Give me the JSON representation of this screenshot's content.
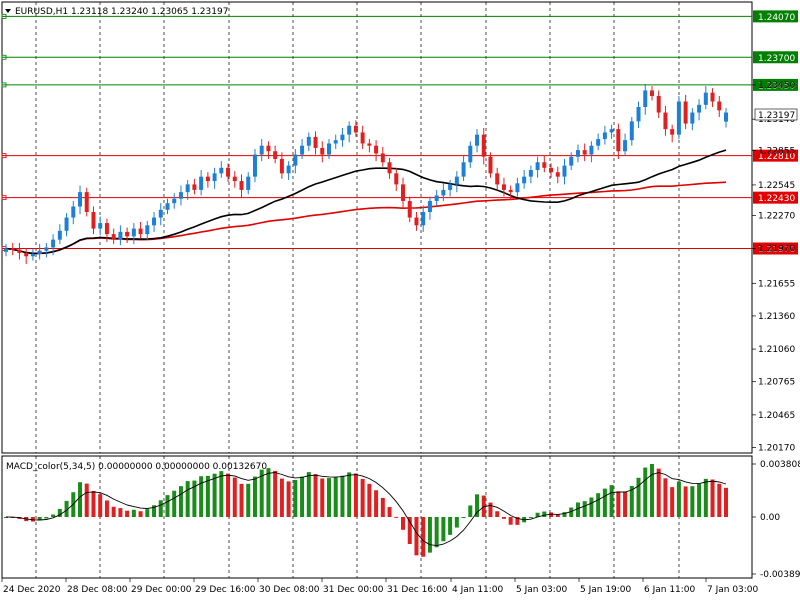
{
  "header": {
    "symbol_line": "EURUSD,H1  1.23118 1.23240 1.23065 1.23197",
    "macd_line": "MACD_color(5,34,5) 0.00000000 0.00000000 0.00132670"
  },
  "current_price": "1.23197",
  "price_axis": {
    "ticks": [
      "1.23450",
      "1.23140",
      "1.22855",
      "1.22545",
      "1.22270",
      "1.21970",
      "1.21655",
      "1.21360",
      "1.21060",
      "1.20765",
      "1.20465",
      "1.20170"
    ]
  },
  "macd_axis": {
    "ticks": [
      "0.0038082",
      "0.00",
      "-0.003894"
    ]
  },
  "levels": [
    {
      "label": "1.24070",
      "price": 1.2407,
      "color": "#008000"
    },
    {
      "label": "1.23700",
      "price": 1.237,
      "color": "#008000"
    },
    {
      "label": "1.23450",
      "price": 1.2345,
      "color": "#008000"
    },
    {
      "label": "1.22810",
      "price": 1.2281,
      "color": "#e00000"
    },
    {
      "label": "1.22430",
      "price": 1.2243,
      "color": "#e00000"
    },
    {
      "label": "1.21970",
      "price": 1.2197,
      "color": "#e00000"
    }
  ],
  "time_labels": [
    "24 Dec 2020",
    "28 Dec 08:00",
    "29 Dec 00:00",
    "29 Dec 16:00",
    "30 Dec 08:00",
    "31 Dec 00:00",
    "31 Dec 16:00",
    "4 Jan 11:00",
    "5 Jan 03:00",
    "5 Jan 19:00",
    "6 Jan 11:00",
    "7 Jan 03:00"
  ],
  "colors": {
    "bull": "#1e7fd6",
    "bear": "#e02020",
    "macd_up": "#1a8c1a",
    "macd_down": "#e02020",
    "grid": "#000000"
  },
  "chart_data": {
    "type": "candlestick",
    "symbol": "EURUSD",
    "timeframe": "H1",
    "ohlc_last": {
      "open": 1.23118,
      "high": 1.2324,
      "low": 1.23065,
      "close": 1.23197
    },
    "close": [
      1.2197,
      1.2196,
      1.2193,
      1.219,
      1.2192,
      1.2195,
      1.2198,
      1.2205,
      1.2213,
      1.2225,
      1.2235,
      1.2248,
      1.223,
      1.2215,
      1.222,
      1.221,
      1.2205,
      1.2212,
      1.2208,
      1.2215,
      1.221,
      1.2218,
      1.2225,
      1.2232,
      1.2238,
      1.2242,
      1.2248,
      1.2255,
      1.225,
      1.2262,
      1.2258,
      1.2265,
      1.227,
      1.2262,
      1.2258,
      1.225,
      1.2262,
      1.2282,
      1.229,
      1.2285,
      1.2278,
      1.2265,
      1.2272,
      1.2282,
      1.229,
      1.2298,
      1.2288,
      1.2282,
      1.2292,
      1.2295,
      1.23,
      1.2308,
      1.2302,
      1.2292,
      1.229,
      1.2283,
      1.2275,
      1.2265,
      1.2255,
      1.224,
      1.2225,
      1.2218,
      1.223,
      1.224,
      1.2245,
      1.225,
      1.2255,
      1.2262,
      1.2275,
      1.229,
      1.23,
      1.228,
      1.2265,
      1.2255,
      1.225,
      1.2248,
      1.2256,
      1.2262,
      1.2268,
      1.2275,
      1.227,
      1.2266,
      1.2262,
      1.2272,
      1.228,
      1.2286,
      1.2282,
      1.229,
      1.2296,
      1.2302,
      1.2305,
      1.2285,
      1.2295,
      1.2312,
      1.2325,
      1.234,
      1.2335,
      1.232,
      1.2305,
      1.23,
      1.233,
      1.231,
      1.232,
      1.2327,
      1.2338,
      1.233,
      1.2322,
      1.232
    ],
    "sma_black_last": 1.2286,
    "sma_red_last": 1.2257,
    "macd_range": [
      -0.003894,
      0.0038082
    ]
  }
}
